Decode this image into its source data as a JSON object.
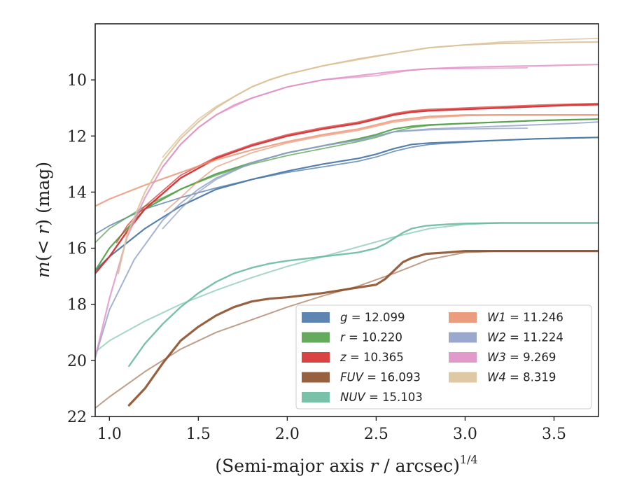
{
  "chart_data": {
    "type": "line",
    "xlabel": "(Semi-major axis r / arcsec)",
    "xlabel_parts": {
      "pre": "(Semi-major axis ",
      "var": "r",
      "post": " / arcsec)",
      "sup": "1/4"
    },
    "ylabel": "m(< r) (mag)",
    "ylabel_parts": {
      "m": "m",
      "lt": "< r",
      "unit": " (mag)"
    },
    "xlim": [
      0.92,
      3.75
    ],
    "ylim": [
      22.0,
      8.0
    ],
    "y_inverted": true,
    "xticks": [
      1.0,
      1.5,
      2.0,
      2.5,
      3.0,
      3.5
    ],
    "xtick_labels": [
      "1.0",
      "1.5",
      "2.0",
      "2.5",
      "3.0",
      "3.5"
    ],
    "yticks": [
      10,
      12,
      14,
      16,
      18,
      20,
      22
    ],
    "ytick_labels": [
      "10",
      "12",
      "14",
      "16",
      "18",
      "20",
      "22"
    ],
    "grid": false,
    "legend_position": "lower-right",
    "legend_columns": 2,
    "legend": [
      {
        "band": "g",
        "value": "12.099",
        "color": "#4c78a8"
      },
      {
        "band": "r",
        "value": "10.220",
        "color": "#54a24b"
      },
      {
        "band": "z",
        "value": "10.365",
        "color": "#d62f2f"
      },
      {
        "band": "FUV",
        "value": "16.093",
        "color": "#8c4f2a"
      },
      {
        "band": "NUV",
        "value": "15.103",
        "color": "#6bbaa0"
      },
      {
        "band": "W1",
        "value": "11.246",
        "color": "#ea9170"
      },
      {
        "band": "W2",
        "value": "11.224",
        "color": "#8f9fc8"
      },
      {
        "band": "W3",
        "value": "9.269",
        "color": "#df8fc4"
      },
      {
        "band": "W4",
        "value": "8.319",
        "color": "#dcc29a"
      }
    ],
    "series": [
      {
        "name": "g",
        "color": "#4c78a8",
        "width": 2.2,
        "opacity": 0.95,
        "x": [
          0.92,
          1.0,
          1.2,
          1.4,
          1.6,
          1.8,
          2.0,
          2.2,
          2.4,
          2.5,
          2.6,
          2.7,
          2.8,
          3.0,
          3.2,
          3.4,
          3.6,
          3.75
        ],
        "y": [
          16.8,
          16.3,
          15.3,
          14.5,
          13.9,
          13.55,
          13.25,
          13.0,
          12.8,
          12.65,
          12.45,
          12.3,
          12.25,
          12.2,
          12.15,
          12.1,
          12.07,
          12.05
        ]
      },
      {
        "name": "g",
        "color": "#4c78a8",
        "width": 1.8,
        "opacity": 0.75,
        "x": [
          0.92,
          1.0,
          1.2,
          1.4,
          1.6,
          1.8,
          2.0,
          2.2,
          2.4,
          2.5,
          2.6,
          2.7,
          2.8,
          3.0,
          3.2,
          3.4,
          3.6,
          3.75
        ],
        "y": [
          15.5,
          15.2,
          14.6,
          14.2,
          13.85,
          13.55,
          13.3,
          13.1,
          12.9,
          12.75,
          12.55,
          12.4,
          12.3,
          12.22,
          12.15,
          12.1,
          12.07,
          12.05
        ]
      },
      {
        "name": "r",
        "color": "#54a24b",
        "width": 2.2,
        "opacity": 0.95,
        "x": [
          0.92,
          1.0,
          1.2,
          1.4,
          1.6,
          1.8,
          2.0,
          2.2,
          2.4,
          2.5,
          2.6,
          2.7,
          2.8,
          3.0,
          3.2,
          3.4,
          3.6,
          3.75
        ],
        "y": [
          16.8,
          16.0,
          14.6,
          13.9,
          13.35,
          12.95,
          12.6,
          12.35,
          12.1,
          11.95,
          11.75,
          11.65,
          11.6,
          11.55,
          11.5,
          11.45,
          11.42,
          11.4
        ]
      },
      {
        "name": "r",
        "color": "#54a24b",
        "width": 1.8,
        "opacity": 0.75,
        "x": [
          0.92,
          1.0,
          1.2,
          1.4,
          1.6,
          1.8,
          2.0,
          2.2,
          2.4,
          2.5,
          2.6,
          2.7,
          2.8,
          3.0,
          3.2,
          3.4,
          3.6,
          3.75
        ],
        "y": [
          15.8,
          15.3,
          14.5,
          13.9,
          13.4,
          13.0,
          12.7,
          12.45,
          12.2,
          12.05,
          11.85,
          11.7,
          11.62,
          11.55,
          11.5,
          11.45,
          11.42,
          11.4
        ]
      },
      {
        "name": "z",
        "color": "#d62f2f",
        "width": 2.4,
        "opacity": 0.95,
        "x": [
          0.92,
          1.0,
          1.1,
          1.2,
          1.4,
          1.6,
          1.8,
          2.0,
          2.2,
          2.4,
          2.5,
          2.6,
          2.7,
          2.8,
          3.0,
          3.2,
          3.4,
          3.6,
          3.75
        ],
        "y": [
          16.9,
          16.3,
          15.4,
          14.6,
          13.5,
          12.8,
          12.35,
          12.0,
          11.75,
          11.55,
          11.4,
          11.25,
          11.15,
          11.1,
          11.05,
          11.0,
          10.95,
          10.9,
          10.88
        ]
      },
      {
        "name": "z",
        "color": "#d62f2f",
        "width": 1.8,
        "opacity": 0.7,
        "x": [
          1.04,
          1.1,
          1.2,
          1.4,
          1.6,
          1.8,
          2.0,
          2.2,
          2.4,
          2.5,
          2.6,
          2.7,
          2.8,
          3.0,
          3.2,
          3.4,
          3.6,
          3.75
        ],
        "y": [
          15.8,
          15.2,
          14.5,
          13.4,
          12.75,
          12.3,
          11.95,
          11.7,
          11.5,
          11.35,
          11.2,
          11.1,
          11.05,
          11.0,
          10.95,
          10.9,
          10.86,
          10.84
        ]
      },
      {
        "name": "FUV",
        "color": "#8c4f2a",
        "width": 3.2,
        "opacity": 0.9,
        "x": [
          1.11,
          1.2,
          1.3,
          1.4,
          1.5,
          1.6,
          1.7,
          1.8,
          1.9,
          2.0,
          2.2,
          2.4,
          2.5,
          2.55,
          2.6,
          2.65,
          2.7,
          2.78,
          2.9,
          3.0,
          3.2,
          3.4,
          3.6,
          3.75
        ],
        "y": [
          21.6,
          21.0,
          20.1,
          19.3,
          18.8,
          18.4,
          18.1,
          17.9,
          17.8,
          17.75,
          17.6,
          17.4,
          17.3,
          17.1,
          16.8,
          16.5,
          16.35,
          16.2,
          16.15,
          16.1,
          16.1,
          16.1,
          16.1,
          16.1
        ]
      },
      {
        "name": "FUV",
        "color": "#8c4f2a",
        "width": 2.0,
        "opacity": 0.55,
        "x": [
          0.92,
          1.0,
          1.2,
          1.4,
          1.6,
          1.8,
          2.0,
          2.2,
          2.4,
          2.6,
          2.8,
          3.0,
          3.2,
          3.4,
          3.6,
          3.75
        ],
        "y": [
          21.7,
          21.3,
          20.4,
          19.6,
          19.0,
          18.55,
          18.1,
          17.7,
          17.35,
          16.9,
          16.4,
          16.15,
          16.1,
          16.1,
          16.1,
          16.1
        ]
      },
      {
        "name": "NUV",
        "color": "#6bbaa0",
        "width": 2.4,
        "opacity": 0.9,
        "x": [
          1.11,
          1.2,
          1.3,
          1.4,
          1.5,
          1.6,
          1.7,
          1.8,
          1.9,
          2.0,
          2.2,
          2.4,
          2.5,
          2.55,
          2.6,
          2.65,
          2.7,
          2.78,
          2.9,
          3.0,
          3.2,
          3.4,
          3.6,
          3.75
        ],
        "y": [
          20.2,
          19.4,
          18.7,
          18.1,
          17.6,
          17.2,
          16.9,
          16.7,
          16.55,
          16.45,
          16.3,
          16.15,
          16.0,
          15.85,
          15.65,
          15.45,
          15.3,
          15.2,
          15.15,
          15.12,
          15.1,
          15.1,
          15.1,
          15.1
        ]
      },
      {
        "name": "NUV",
        "color": "#6bbaa0",
        "width": 2.0,
        "opacity": 0.6,
        "x": [
          0.92,
          1.0,
          1.2,
          1.4,
          1.6,
          1.8,
          2.0,
          2.2,
          2.4,
          2.6,
          2.8,
          3.0,
          3.2,
          3.4,
          3.6,
          3.75
        ],
        "y": [
          19.7,
          19.3,
          18.6,
          18.0,
          17.5,
          17.05,
          16.65,
          16.3,
          15.95,
          15.6,
          15.3,
          15.15,
          15.1,
          15.1,
          15.1,
          15.1
        ]
      },
      {
        "name": "W1",
        "color": "#ea9170",
        "width": 2.2,
        "opacity": 0.8,
        "x": [
          0.92,
          1.0,
          1.2,
          1.4,
          1.6,
          1.8,
          2.0,
          2.2,
          2.4,
          2.5,
          2.6,
          2.8,
          3.0,
          3.2,
          3.4,
          3.6,
          3.75
        ],
        "y": [
          14.5,
          14.25,
          13.75,
          13.3,
          12.85,
          12.5,
          12.2,
          11.95,
          11.75,
          11.6,
          11.45,
          11.3,
          11.25,
          11.25,
          11.25,
          11.25,
          11.25
        ]
      },
      {
        "name": "W1",
        "color": "#ea9170",
        "width": 1.8,
        "opacity": 0.7,
        "x": [
          1.31,
          1.4,
          1.5,
          1.6,
          1.8,
          2.0,
          2.2,
          2.4,
          2.5,
          2.6,
          2.8,
          3.0,
          3.2,
          3.4,
          3.6,
          3.75
        ],
        "y": [
          14.7,
          14.2,
          13.6,
          13.1,
          12.6,
          12.25,
          12.0,
          11.8,
          11.65,
          11.5,
          11.35,
          11.28,
          11.25,
          11.25,
          11.25,
          11.25
        ]
      },
      {
        "name": "W2",
        "color": "#8f9fc8",
        "width": 2.0,
        "opacity": 0.8,
        "x": [
          0.92,
          1.0,
          1.14,
          1.3,
          1.4,
          1.5,
          1.6,
          1.8,
          2.0,
          2.2,
          2.4,
          2.5,
          2.6,
          2.8,
          3.0,
          3.2,
          3.4,
          3.6,
          3.75
        ],
        "y": [
          19.9,
          18.2,
          16.4,
          15.0,
          14.4,
          13.9,
          13.5,
          12.95,
          12.6,
          12.35,
          12.15,
          12.0,
          11.85,
          11.75,
          11.7,
          11.65,
          11.6,
          11.55,
          11.5
        ]
      },
      {
        "name": "W2",
        "color": "#8f9fc8",
        "width": 1.8,
        "opacity": 0.75,
        "x": [
          1.3,
          1.4,
          1.5,
          1.6,
          1.8,
          2.0,
          2.2,
          2.4,
          2.5,
          2.6,
          2.8,
          3.0,
          3.2,
          3.35
        ],
        "y": [
          15.3,
          14.6,
          14.0,
          13.55,
          12.95,
          12.6,
          12.35,
          12.15,
          12.0,
          11.85,
          11.78,
          11.75,
          11.73,
          11.72
        ]
      },
      {
        "name": "W3",
        "color": "#df8fc4",
        "width": 2.2,
        "opacity": 0.8,
        "x": [
          0.92,
          1.0,
          1.1,
          1.2,
          1.3,
          1.4,
          1.5,
          1.6,
          1.7,
          1.8,
          2.0,
          2.2,
          2.4,
          2.6,
          2.8,
          3.0,
          3.2,
          3.4,
          3.6,
          3.75
        ],
        "y": [
          19.9,
          17.8,
          15.6,
          14.2,
          13.1,
          12.3,
          11.7,
          11.25,
          10.9,
          10.65,
          10.25,
          10.0,
          9.85,
          9.7,
          9.6,
          9.55,
          9.52,
          9.5,
          9.47,
          9.45
        ]
      },
      {
        "name": "W3",
        "color": "#df8fc4",
        "width": 1.8,
        "opacity": 0.7,
        "x": [
          1.3,
          1.4,
          1.5,
          1.6,
          1.8,
          2.0,
          2.2,
          2.4,
          2.5,
          2.6,
          2.7,
          2.8,
          3.0,
          3.2,
          3.35
        ],
        "y": [
          13.1,
          12.3,
          11.7,
          11.25,
          10.65,
          10.25,
          10.0,
          9.9,
          9.85,
          9.75,
          9.65,
          9.6,
          9.6,
          9.58,
          9.57
        ]
      },
      {
        "name": "W4",
        "color": "#dcc29a",
        "width": 2.2,
        "opacity": 0.9,
        "x": [
          1.05,
          1.1,
          1.2,
          1.3,
          1.4,
          1.5,
          1.6,
          1.7,
          1.8,
          1.9,
          2.0,
          2.2,
          2.4,
          2.6,
          2.8,
          3.0,
          3.2,
          3.4,
          3.6,
          3.75
        ],
        "y": [
          16.9,
          15.5,
          14.0,
          12.9,
          12.1,
          11.5,
          11.0,
          10.6,
          10.25,
          10.0,
          9.8,
          9.5,
          9.25,
          9.05,
          8.85,
          8.75,
          8.7,
          8.68,
          8.66,
          8.65
        ]
      },
      {
        "name": "W4",
        "color": "#dcc29a",
        "width": 1.8,
        "opacity": 0.8,
        "x": [
          1.3,
          1.4,
          1.5,
          1.6,
          1.7,
          1.8,
          1.9,
          2.0,
          2.2,
          2.4,
          2.6,
          2.8,
          3.0,
          3.2,
          3.4,
          3.6,
          3.75
        ],
        "y": [
          12.75,
          12.0,
          11.4,
          10.95,
          10.6,
          10.25,
          10.0,
          9.8,
          9.5,
          9.28,
          9.05,
          8.85,
          8.75,
          8.65,
          8.6,
          8.55,
          8.52
        ]
      }
    ]
  }
}
